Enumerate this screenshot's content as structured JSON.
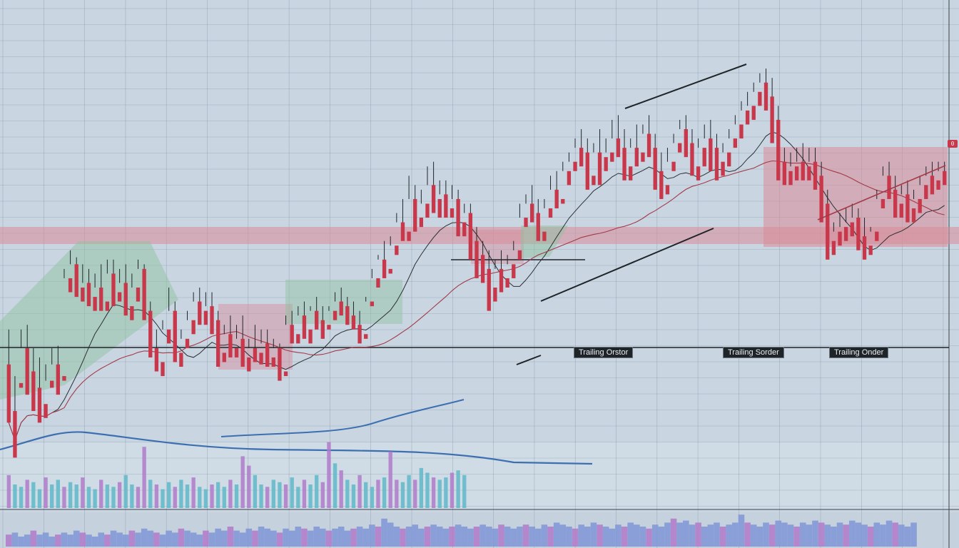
{
  "chart_data": {
    "type": "candlestick",
    "grid": true,
    "colors": {
      "background": "#c9d6e2",
      "grid": "#7f8fa0",
      "up": "#2e8b6e",
      "down": "#c8384a",
      "ma_dark": "#2b2f33",
      "ma_red": "#a33a48",
      "ma_blue": "#3d6fb0",
      "zone_red": "#d98a97",
      "zone_green": "#8fc2a0",
      "volume_teal": "#5fb8c9",
      "volume_purple": "#b07ac9",
      "volume_blue": "#7f96d6"
    },
    "annotations": {
      "trailing_orders": [
        "Trailing Orstor",
        "Trailing Sorder",
        "Trailing Onder"
      ],
      "price_tag_marker": "0"
    },
    "ohlc": [
      [
        55,
        70,
        40,
        30
      ],
      [
        35,
        50,
        25,
        15
      ],
      [
        47,
        70,
        62,
        45
      ],
      [
        62,
        72,
        52,
        42
      ],
      [
        52,
        62,
        45,
        35
      ],
      [
        45,
        58,
        38,
        30
      ],
      [
        38,
        55,
        48,
        32
      ],
      [
        48,
        62,
        55,
        45
      ],
      [
        55,
        63,
        50,
        42
      ],
      [
        50,
        96,
        92,
        48
      ],
      [
        92,
        104,
        98,
        86
      ],
      [
        98,
        101,
        88,
        84
      ],
      [
        88,
        98,
        90,
        82
      ],
      [
        90,
        96,
        84,
        80
      ],
      [
        84,
        94,
        88,
        78
      ],
      [
        88,
        98,
        82,
        78
      ],
      [
        82,
        100,
        94,
        78
      ],
      [
        94,
        100,
        86,
        80
      ],
      [
        86,
        96,
        90,
        82
      ],
      [
        90,
        98,
        80,
        76
      ],
      [
        80,
        94,
        88,
        74
      ],
      [
        88,
        100,
        96,
        82
      ],
      [
        96,
        98,
        78,
        74
      ],
      [
        78,
        82,
        62,
        58
      ],
      [
        62,
        70,
        56,
        52
      ],
      [
        56,
        74,
        70,
        50
      ],
      [
        70,
        88,
        78,
        64
      ],
      [
        78,
        82,
        60,
        56
      ],
      [
        60,
        70,
        66,
        54
      ],
      [
        66,
        78,
        74,
        62
      ],
      [
        74,
        86,
        82,
        68
      ],
      [
        82,
        88,
        78,
        72
      ],
      [
        78,
        86,
        80,
        72
      ],
      [
        80,
        86,
        74,
        68
      ],
      [
        74,
        78,
        60,
        54
      ],
      [
        60,
        72,
        68,
        56
      ],
      [
        68,
        76,
        62,
        58
      ],
      [
        62,
        72,
        66,
        58
      ],
      [
        66,
        76,
        58,
        54
      ],
      [
        58,
        66,
        62,
        52
      ],
      [
        62,
        72,
        60,
        56
      ],
      [
        60,
        70,
        64,
        55
      ],
      [
        64,
        70,
        58,
        54
      ],
      [
        58,
        66,
        62,
        54
      ],
      [
        62,
        64,
        52,
        48
      ],
      [
        52,
        76,
        72,
        50
      ],
      [
        72,
        78,
        68,
        64
      ],
      [
        68,
        80,
        76,
        64
      ],
      [
        76,
        82,
        70,
        66
      ],
      [
        70,
        80,
        78,
        64
      ],
      [
        78,
        84,
        74,
        70
      ],
      [
        74,
        80,
        72,
        66
      ],
      [
        72,
        80,
        78,
        70
      ],
      [
        78,
        86,
        82,
        74
      ],
      [
        82,
        88,
        80,
        76
      ],
      [
        80,
        84,
        76,
        72
      ],
      [
        76,
        82,
        72,
        70
      ],
      [
        72,
        78,
        68,
        64
      ],
      [
        68,
        84,
        82,
        66
      ],
      [
        82,
        96,
        92,
        80
      ],
      [
        92,
        102,
        100,
        88
      ],
      [
        100,
        108,
        96,
        92
      ],
      [
        96,
        110,
        106,
        94
      ],
      [
        106,
        120,
        116,
        102
      ],
      [
        116,
        126,
        112,
        108
      ],
      [
        112,
        136,
        126,
        108
      ],
      [
        126,
        132,
        118,
        112
      ],
      [
        118,
        130,
        124,
        114
      ],
      [
        124,
        140,
        132,
        118
      ],
      [
        132,
        142,
        126,
        120
      ],
      [
        126,
        134,
        128,
        118
      ],
      [
        128,
        134,
        122,
        118
      ],
      [
        122,
        132,
        126,
        118
      ],
      [
        126,
        130,
        116,
        110
      ],
      [
        116,
        124,
        120,
        110
      ],
      [
        120,
        124,
        108,
        100
      ],
      [
        108,
        114,
        102,
        92
      ],
      [
        102,
        108,
        96,
        90
      ],
      [
        96,
        104,
        88,
        78
      ],
      [
        88,
        100,
        96,
        82
      ],
      [
        96,
        104,
        92,
        86
      ],
      [
        92,
        102,
        98,
        88
      ],
      [
        98,
        108,
        104,
        92
      ],
      [
        104,
        124,
        118,
        100
      ],
      [
        118,
        128,
        124,
        114
      ],
      [
        124,
        132,
        120,
        116
      ],
      [
        120,
        126,
        112,
        108
      ],
      [
        112,
        126,
        122,
        108
      ],
      [
        122,
        136,
        130,
        118
      ],
      [
        130,
        138,
        126,
        122
      ],
      [
        126,
        142,
        138,
        124
      ],
      [
        138,
        146,
        142,
        132
      ],
      [
        142,
        152,
        148,
        138
      ],
      [
        148,
        156,
        146,
        140
      ],
      [
        146,
        152,
        136,
        130
      ],
      [
        136,
        150,
        146,
        132
      ],
      [
        146,
        156,
        144,
        132
      ],
      [
        144,
        152,
        146,
        138
      ],
      [
        146,
        160,
        152,
        142
      ],
      [
        152,
        162,
        148,
        144
      ],
      [
        148,
        156,
        140,
        134
      ],
      [
        140,
        152,
        148,
        134
      ],
      [
        148,
        158,
        146,
        140
      ],
      [
        146,
        158,
        154,
        142
      ],
      [
        154,
        162,
        148,
        144
      ],
      [
        148,
        154,
        138,
        130
      ],
      [
        138,
        146,
        132,
        126
      ],
      [
        132,
        148,
        142,
        128
      ],
      [
        142,
        154,
        150,
        138
      ],
      [
        150,
        160,
        156,
        146
      ],
      [
        156,
        162,
        150,
        144
      ],
      [
        150,
        156,
        140,
        136
      ],
      [
        140,
        152,
        148,
        134
      ],
      [
        148,
        158,
        152,
        140
      ],
      [
        152,
        160,
        148,
        138
      ],
      [
        148,
        154,
        142,
        134
      ],
      [
        142,
        150,
        146,
        136
      ],
      [
        146,
        156,
        152,
        140
      ],
      [
        152,
        162,
        158,
        148
      ],
      [
        158,
        168,
        164,
        152
      ],
      [
        164,
        172,
        166,
        158
      ],
      [
        166,
        176,
        172,
        160
      ],
      [
        172,
        180,
        176,
        166
      ],
      [
        176,
        182,
        170,
        164
      ],
      [
        170,
        178,
        160,
        150
      ],
      [
        160,
        166,
        142,
        134
      ],
      [
        142,
        148,
        138,
        132
      ],
      [
        138,
        146,
        140,
        132
      ],
      [
        140,
        148,
        142,
        134
      ],
      [
        142,
        150,
        140,
        134
      ],
      [
        140,
        148,
        142,
        134
      ],
      [
        142,
        148,
        136,
        130
      ],
      [
        136,
        142,
        124,
        116
      ],
      [
        124,
        130,
        108,
        100
      ],
      [
        108,
        116,
        112,
        102
      ],
      [
        112,
        120,
        114,
        106
      ],
      [
        114,
        122,
        116,
        108
      ],
      [
        116,
        124,
        118,
        110
      ],
      [
        118,
        122,
        110,
        104
      ],
      [
        110,
        118,
        106,
        100
      ],
      [
        106,
        114,
        112,
        102
      ],
      [
        112,
        130,
        126,
        108
      ],
      [
        126,
        140,
        136,
        122
      ],
      [
        136,
        142,
        130,
        126
      ],
      [
        130,
        136,
        124,
        118
      ],
      [
        124,
        132,
        128,
        118
      ],
      [
        128,
        134,
        122,
        116
      ],
      [
        122,
        130,
        126,
        116
      ],
      [
        126,
        136,
        132,
        120
      ],
      [
        132,
        140,
        136,
        126
      ],
      [
        136,
        142,
        134,
        128
      ],
      [
        134,
        142,
        138,
        130
      ],
      [
        138,
        142,
        136,
        132
      ]
    ],
    "volume": [
      14,
      10,
      9,
      12,
      11,
      8,
      13,
      10,
      12,
      9,
      11,
      10,
      13,
      9,
      8,
      12,
      10,
      9,
      11,
      14,
      10,
      9,
      26,
      12,
      10,
      8,
      11,
      9,
      12,
      10,
      13,
      9,
      8,
      10,
      11,
      9,
      12,
      10,
      22,
      18,
      14,
      10,
      9,
      12,
      11,
      10,
      13,
      9,
      12,
      10,
      14,
      11,
      28,
      19,
      16,
      12,
      10,
      14,
      11,
      9,
      12,
      13,
      24,
      12,
      11,
      14,
      12,
      17,
      15,
      13,
      12,
      13,
      15,
      16,
      14,
      0,
      0,
      0,
      0,
      0,
      0,
      0,
      0,
      0,
      0,
      0,
      0,
      0,
      0,
      0,
      0,
      0,
      0,
      0,
      0,
      0,
      0,
      0,
      0,
      0,
      0,
      0,
      0,
      0,
      0,
      0,
      0,
      0,
      0,
      0,
      0,
      0,
      0,
      0,
      0,
      0,
      0,
      0,
      0,
      0,
      0,
      0,
      0,
      0,
      0,
      0,
      0,
      0,
      0,
      0,
      0,
      0,
      0,
      0,
      0,
      0,
      0,
      0,
      0,
      0,
      0,
      0,
      0,
      0,
      0,
      0,
      0,
      0
    ],
    "volume_lower": [
      6,
      7,
      5,
      6,
      8,
      6,
      7,
      5,
      6,
      7,
      6,
      8,
      7,
      6,
      5,
      7,
      6,
      8,
      7,
      6,
      8,
      7,
      9,
      8,
      7,
      6,
      8,
      7,
      9,
      8,
      7,
      6,
      8,
      7,
      9,
      8,
      10,
      8,
      7,
      9,
      8,
      10,
      9,
      8,
      7,
      9,
      8,
      10,
      9,
      8,
      10,
      9,
      8,
      9,
      10,
      8,
      9,
      10,
      9,
      11,
      10,
      14,
      12,
      10,
      9,
      10,
      11,
      9,
      10,
      11,
      10,
      9,
      10,
      11,
      10,
      9,
      10,
      11,
      10,
      9,
      11,
      10,
      9,
      10,
      11,
      10,
      9,
      11,
      10,
      12,
      11,
      10,
      9,
      11,
      10,
      12,
      11,
      10,
      9,
      11,
      10,
      12,
      11,
      10,
      9,
      11,
      10,
      12,
      14,
      12,
      13,
      11,
      12,
      10,
      11,
      12,
      10,
      11,
      12,
      16,
      12,
      11,
      10,
      12,
      11,
      13,
      12,
      11,
      10,
      12,
      11,
      13,
      12,
      11,
      10,
      12,
      11,
      13,
      12,
      11,
      10,
      12,
      11,
      13,
      12,
      11,
      10,
      12
    ]
  }
}
